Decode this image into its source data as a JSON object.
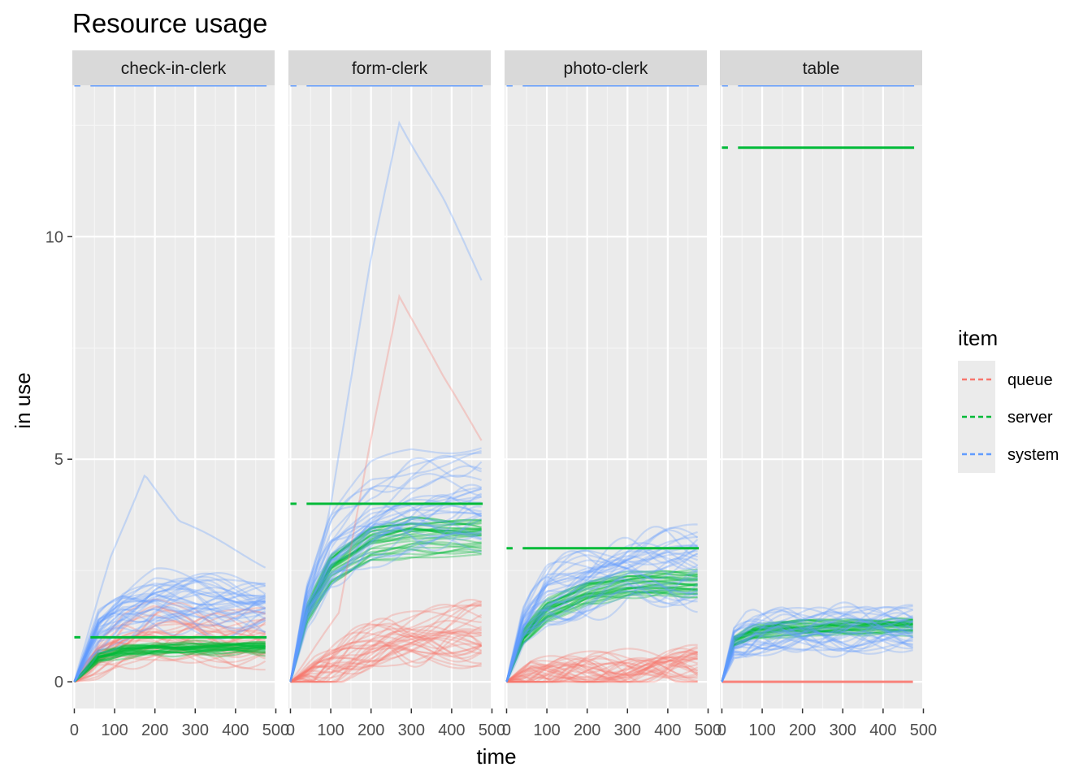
{
  "chart_data": {
    "type": "line",
    "title": "Resource usage",
    "xlabel": "time",
    "ylabel": "in use",
    "xlim": [
      -5,
      497
    ],
    "ylim": [
      -0.6,
      13.4
    ],
    "x_ticks": [
      "0",
      "100",
      "200",
      "300",
      "400",
      "500"
    ],
    "x_tick_values": [
      0,
      100,
      200,
      300,
      400,
      500
    ],
    "y_ticks": [
      "0",
      "5",
      "10"
    ],
    "y_tick_values": [
      0,
      5,
      10
    ],
    "grid": true,
    "legend": {
      "title": "item",
      "position": "right",
      "items": [
        {
          "name": "queue",
          "color": "#F8766D"
        },
        {
          "name": "server",
          "color": "#00BA38"
        },
        {
          "name": "system",
          "color": "#619CFF"
        }
      ]
    },
    "facets": [
      {
        "name": "check-in-clerk",
        "capacity": {
          "queue": 13.4,
          "server": 1,
          "system": 13.4
        },
        "server_mean": {
          "x": [
            0,
            60,
            120,
            200,
            300,
            400,
            477
          ],
          "y": [
            0,
            0.55,
            0.68,
            0.73,
            0.75,
            0.75,
            0.75
          ]
        },
        "queue_mean": {
          "x": [
            0,
            60,
            120,
            200,
            300,
            400,
            477
          ],
          "y": [
            0,
            0.5,
            0.85,
            1.05,
            1.0,
            0.95,
            0.95
          ]
        },
        "system_mean": {
          "x": [
            0,
            60,
            120,
            200,
            300,
            400,
            477
          ],
          "y": [
            0,
            1.1,
            1.55,
            1.8,
            1.75,
            1.7,
            1.7
          ]
        },
        "system_peak": {
          "x": [
            0,
            90,
            175,
            260,
            477
          ],
          "y": [
            0,
            2.8,
            4.7,
            3.6,
            2.6
          ]
        }
      },
      {
        "name": "form-clerk",
        "capacity": {
          "queue": 13.4,
          "server": 4,
          "system": 13.4
        },
        "server_mean": {
          "x": [
            0,
            40,
            100,
            200,
            300,
            400,
            477
          ],
          "y": [
            0,
            1.5,
            2.5,
            3.1,
            3.25,
            3.25,
            3.25
          ]
        },
        "queue_mean": {
          "x": [
            0,
            60,
            150,
            250,
            350,
            477
          ],
          "y": [
            0,
            0.2,
            0.6,
            0.9,
            1.0,
            1.1
          ]
        },
        "system_mean": {
          "x": [
            0,
            40,
            100,
            200,
            300,
            400,
            477
          ],
          "y": [
            0,
            1.8,
            3.0,
            3.8,
            4.1,
            4.2,
            4.3
          ]
        },
        "system_peak": {
          "x": [
            0,
            100,
            200,
            270,
            380,
            477
          ],
          "y": [
            0,
            4.0,
            9.5,
            12.6,
            10.8,
            9.0
          ]
        },
        "queue_peak": {
          "x": [
            0,
            120,
            200,
            270,
            380,
            477
          ],
          "y": [
            0,
            1.5,
            5.5,
            8.7,
            6.8,
            5.4
          ]
        }
      },
      {
        "name": "photo-clerk",
        "capacity": {
          "queue": 13.4,
          "server": 3,
          "system": 13.4
        },
        "server_mean": {
          "x": [
            0,
            40,
            100,
            200,
            300,
            400,
            477
          ],
          "y": [
            0,
            1.0,
            1.6,
            2.0,
            2.15,
            2.2,
            2.2
          ]
        },
        "queue_mean": {
          "x": [
            0,
            60,
            150,
            250,
            350,
            477
          ],
          "y": [
            0,
            0.15,
            0.25,
            0.3,
            0.35,
            0.4
          ]
        },
        "system_mean": {
          "x": [
            0,
            40,
            100,
            200,
            300,
            400,
            477
          ],
          "y": [
            0,
            1.2,
            1.9,
            2.3,
            2.5,
            2.6,
            2.6
          ]
        }
      },
      {
        "name": "table",
        "capacity": {
          "queue": 0,
          "server": 12,
          "system": 13.4
        },
        "server_mean": {
          "x": [
            0,
            30,
            80,
            150,
            250,
            350,
            477
          ],
          "y": [
            0,
            0.9,
            1.1,
            1.2,
            1.2,
            1.2,
            1.25
          ]
        },
        "queue_mean": {
          "x": [
            0,
            477
          ],
          "y": [
            0,
            0
          ]
        },
        "system_mean": {
          "x": [
            0,
            30,
            80,
            150,
            250,
            350,
            477
          ],
          "y": [
            0,
            0.9,
            1.1,
            1.2,
            1.2,
            1.2,
            1.25
          ]
        }
      }
    ]
  }
}
